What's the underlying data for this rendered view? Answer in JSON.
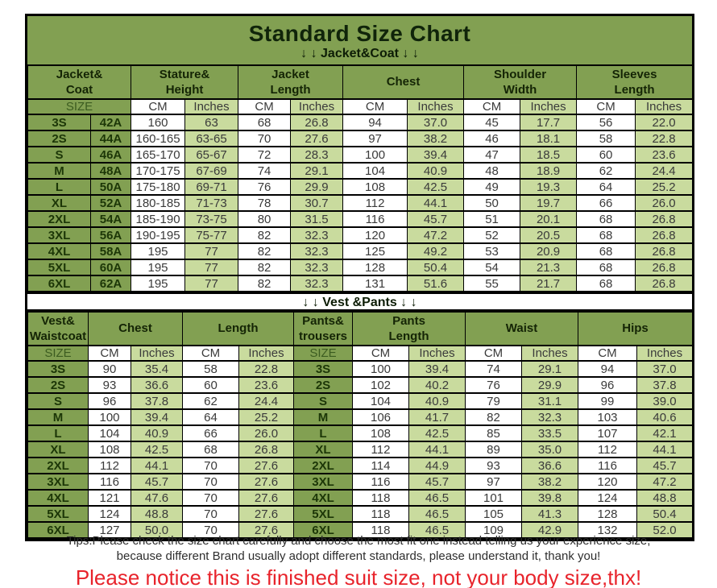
{
  "title": "Standard Size Chart",
  "jacket_divider": "↓ ↓  Jacket&Coat ↓ ↓",
  "vest_divider": "↓ ↓  Vest &Pants ↓ ↓",
  "colors": {
    "header_green": "#82a052",
    "inches_light_green": "#c9db9e",
    "cm_white": "#ffffff",
    "notice_red": "#e8232b",
    "border_black": "#000000"
  },
  "chart_data": [
    {
      "type": "table",
      "title": "Jacket&Coat",
      "group_headers": [
        "Jacket&\nCoat",
        "Stature&\nHeight",
        "Jacket\nLength",
        "Chest",
        "Shoulder\nWidth",
        "Sleeves\nLength"
      ],
      "sub_headers": [
        "SIZE",
        "CM",
        "Inches",
        "CM",
        "Inches",
        "CM",
        "Inches",
        "CM",
        "Inches",
        "CM",
        "Inches"
      ],
      "rows": [
        [
          "3S",
          "42A",
          "160",
          "63",
          "68",
          "26.8",
          "94",
          "37.0",
          "45",
          "17.7",
          "56",
          "22.0"
        ],
        [
          "2S",
          "44A",
          "160-165",
          "63-65",
          "70",
          "27.6",
          "97",
          "38.2",
          "46",
          "18.1",
          "58",
          "22.8"
        ],
        [
          "S",
          "46A",
          "165-170",
          "65-67",
          "72",
          "28.3",
          "100",
          "39.4",
          "47",
          "18.5",
          "60",
          "23.6"
        ],
        [
          "M",
          "48A",
          "170-175",
          "67-69",
          "74",
          "29.1",
          "104",
          "40.9",
          "48",
          "18.9",
          "62",
          "24.4"
        ],
        [
          "L",
          "50A",
          "175-180",
          "69-71",
          "76",
          "29.9",
          "108",
          "42.5",
          "49",
          "19.3",
          "64",
          "25.2"
        ],
        [
          "XL",
          "52A",
          "180-185",
          "71-73",
          "78",
          "30.7",
          "112",
          "44.1",
          "50",
          "19.7",
          "66",
          "26.0"
        ],
        [
          "2XL",
          "54A",
          "185-190",
          "73-75",
          "80",
          "31.5",
          "116",
          "45.7",
          "51",
          "20.1",
          "68",
          "26.8"
        ],
        [
          "3XL",
          "56A",
          "190-195",
          "75-77",
          "82",
          "32.3",
          "120",
          "47.2",
          "52",
          "20.5",
          "68",
          "26.8"
        ],
        [
          "4XL",
          "58A",
          "195",
          "77",
          "82",
          "32.3",
          "125",
          "49.2",
          "53",
          "20.9",
          "68",
          "26.8"
        ],
        [
          "5XL",
          "60A",
          "195",
          "77",
          "82",
          "32.3",
          "128",
          "50.4",
          "54",
          "21.3",
          "68",
          "26.8"
        ],
        [
          "6XL",
          "62A",
          "195",
          "77",
          "82",
          "32.3",
          "131",
          "51.6",
          "55",
          "21.7",
          "68",
          "26.8"
        ]
      ]
    },
    {
      "type": "table",
      "title": "Vest &Pants",
      "group_headers": [
        "Vest&\nWaistcoat",
        "Chest",
        "Length",
        "Pants&\ntrousers",
        "Pants\nLength",
        "Waist",
        "Hips"
      ],
      "sub_headers": [
        "SIZE",
        "CM",
        "Inches",
        "CM",
        "Inches",
        "SIZE",
        "CM",
        "Inches",
        "CM",
        "Inches",
        "CM",
        "Inches"
      ],
      "rows": [
        [
          "3S",
          "90",
          "35.4",
          "58",
          "22.8",
          "3S",
          "100",
          "39.4",
          "74",
          "29.1",
          "94",
          "37.0"
        ],
        [
          "2S",
          "93",
          "36.6",
          "60",
          "23.6",
          "2S",
          "102",
          "40.2",
          "76",
          "29.9",
          "96",
          "37.8"
        ],
        [
          "S",
          "96",
          "37.8",
          "62",
          "24.4",
          "S",
          "104",
          "40.9",
          "79",
          "31.1",
          "99",
          "39.0"
        ],
        [
          "M",
          "100",
          "39.4",
          "64",
          "25.2",
          "M",
          "106",
          "41.7",
          "82",
          "32.3",
          "103",
          "40.6"
        ],
        [
          "L",
          "104",
          "40.9",
          "66",
          "26.0",
          "L",
          "108",
          "42.5",
          "85",
          "33.5",
          "107",
          "42.1"
        ],
        [
          "XL",
          "108",
          "42.5",
          "68",
          "26.8",
          "XL",
          "112",
          "44.1",
          "89",
          "35.0",
          "112",
          "44.1"
        ],
        [
          "2XL",
          "112",
          "44.1",
          "70",
          "27.6",
          "2XL",
          "114",
          "44.9",
          "93",
          "36.6",
          "116",
          "45.7"
        ],
        [
          "3XL",
          "116",
          "45.7",
          "70",
          "27.6",
          "3XL",
          "116",
          "45.7",
          "97",
          "38.2",
          "120",
          "47.2"
        ],
        [
          "4XL",
          "121",
          "47.6",
          "70",
          "27.6",
          "4XL",
          "118",
          "46.5",
          "101",
          "39.8",
          "124",
          "48.8"
        ],
        [
          "5XL",
          "124",
          "48.8",
          "70",
          "27.6",
          "5XL",
          "118",
          "46.5",
          "105",
          "41.3",
          "128",
          "50.4"
        ],
        [
          "6XL",
          "127",
          "50.0",
          "70",
          "27.6",
          "6XL",
          "118",
          "46.5",
          "109",
          "42.9",
          "132",
          "52.0"
        ]
      ]
    }
  ],
  "footer": {
    "tips_line1": "Tips:Please check the size chart carefully and choose the most fit one instead telling us your experience size,",
    "tips_line2": "because different Brand usually adopt different standards, please understand it, thank you!",
    "notice": "Please notice this is finished suit size, not your body size,thx!"
  }
}
